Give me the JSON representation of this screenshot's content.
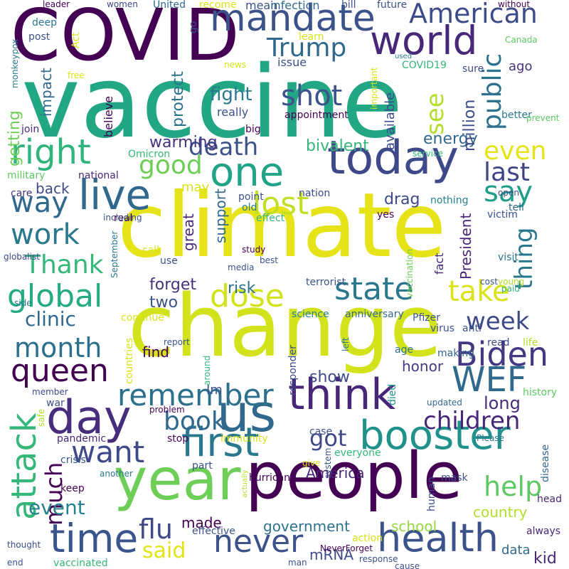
{
  "words": [
    {
      "text": "vaccine",
      "color": "#22a785"
    },
    {
      "text": "climate",
      "color": "#e6e419"
    },
    {
      "text": "change",
      "color": "#d2e21b"
    },
    {
      "text": "COVID",
      "color": "#440154"
    },
    {
      "text": "people",
      "color": "#440154"
    },
    {
      "text": "year",
      "color": "#6ece58"
    },
    {
      "text": "today",
      "color": "#3e4989"
    },
    {
      "text": "mandate",
      "color": "#3b528b"
    },
    {
      "text": "world",
      "color": "#482878"
    },
    {
      "text": "American",
      "color": "#3e4c8a"
    },
    {
      "text": "us",
      "color": "#31688e"
    },
    {
      "text": "think",
      "color": "#482677"
    },
    {
      "text": "day",
      "color": "#472d7b"
    },
    {
      "text": "booster",
      "color": "#21918c"
    },
    {
      "text": "first",
      "color": "#2a788e"
    },
    {
      "text": "health",
      "color": "#3b528b"
    },
    {
      "text": "time",
      "color": "#3a548c"
    },
    {
      "text": "live",
      "color": "#31688e"
    },
    {
      "text": "one",
      "color": "#20a386"
    },
    {
      "text": "right",
      "color": "#2fb47c"
    },
    {
      "text": "Trump",
      "color": "#31688e"
    },
    {
      "text": "shot",
      "color": "#3b528b"
    },
    {
      "text": "public",
      "color": "#2c718e"
    },
    {
      "text": "WEF",
      "color": "#31688e"
    },
    {
      "text": "Biden",
      "color": "#453781"
    },
    {
      "text": "remember",
      "color": "#2d708e"
    },
    {
      "text": "queen",
      "color": "#440154"
    },
    {
      "text": "global",
      "color": "#25ab82"
    },
    {
      "text": "state",
      "color": "#2a788e"
    },
    {
      "text": "dose",
      "color": "#d2e21b"
    },
    {
      "text": "take",
      "color": "#dae319"
    },
    {
      "text": "lost",
      "color": "#c2df23"
    },
    {
      "text": "say",
      "color": "#1f9e89"
    },
    {
      "text": "work",
      "color": "#2a788e"
    },
    {
      "text": "Thank",
      "color": "#35b779"
    },
    {
      "text": "month",
      "color": "#2d708e"
    },
    {
      "text": "want",
      "color": "#3e4989"
    },
    {
      "text": "never",
      "color": "#3b528b"
    },
    {
      "text": "attack",
      "color": "#35b779"
    },
    {
      "text": "help",
      "color": "#5ec962"
    },
    {
      "text": "children",
      "color": "#482878"
    },
    {
      "text": "book",
      "color": "#31688e"
    },
    {
      "text": "way",
      "color": "#31688e"
    },
    {
      "text": "death",
      "color": "#3b528b"
    },
    {
      "text": "good",
      "color": "#6ece58"
    },
    {
      "text": "even",
      "color": "#e5e419"
    },
    {
      "text": "last",
      "color": "#414487"
    },
    {
      "text": "week",
      "color": "#3e4a89"
    },
    {
      "text": "thing",
      "color": "#2a788e"
    },
    {
      "text": "flu",
      "color": "#3e4989"
    },
    {
      "text": "said",
      "color": "#e2e418"
    },
    {
      "text": "got",
      "color": "#3e4989"
    },
    {
      "text": "much",
      "color": "#440154"
    },
    {
      "text": "event",
      "color": "#26828e"
    },
    {
      "text": "clinic",
      "color": "#31688e"
    },
    {
      "text": "see",
      "color": "#b5de2b"
    },
    {
      "text": "fight",
      "color": "#2a788e"
    },
    {
      "text": "show",
      "color": "#3e4a89"
    },
    {
      "text": "long",
      "color": "#472d7b"
    },
    {
      "text": "country",
      "color": "#b5de2b"
    },
    {
      "text": "school",
      "color": "#95d840"
    },
    {
      "text": "government",
      "color": "#2c728e"
    },
    {
      "text": "America",
      "color": "#482677"
    },
    {
      "text": "drag",
      "color": "#3e4989"
    },
    {
      "text": "energy",
      "color": "#31688e"
    },
    {
      "text": "bivalent",
      "color": "#35b779"
    },
    {
      "text": "warming",
      "color": "#46337f"
    },
    {
      "text": "protect",
      "color": "#2c728e"
    },
    {
      "text": "impact",
      "color": "#31688e"
    },
    {
      "text": "getting",
      "color": "#6ece58"
    },
    {
      "text": "million",
      "color": "#3e4989"
    },
    {
      "text": "available",
      "color": "#3e4a89"
    },
    {
      "text": "President",
      "color": "#482677"
    },
    {
      "text": "support",
      "color": "#31688e"
    },
    {
      "text": "great",
      "color": "#482878"
    },
    {
      "text": "risk",
      "color": "#2d708e"
    },
    {
      "text": "forget",
      "color": "#46337f"
    },
    {
      "text": "two",
      "color": "#3b528b"
    },
    {
      "text": "find",
      "color": "#440154"
    },
    {
      "text": "honor",
      "color": "#453781"
    },
    {
      "text": "made",
      "color": "#440154"
    },
    {
      "text": "mRNA",
      "color": "#3e4c8a"
    },
    {
      "text": "data",
      "color": "#31688e"
    },
    {
      "text": "kid",
      "color": "#482878"
    },
    {
      "text": "back",
      "color": "#3e4989"
    },
    {
      "text": "may",
      "color": "#dae319"
    },
    {
      "text": "ago",
      "color": "#46337f"
    },
    {
      "text": "issue",
      "color": "#3b528b"
    },
    {
      "text": "mean",
      "color": "#3b528b"
    },
    {
      "text": "infection",
      "color": "#31688e"
    },
    {
      "text": "really",
      "color": "#3b528b"
    },
    {
      "text": "big",
      "color": "#440154"
    },
    {
      "text": "believe",
      "color": "#440154"
    },
    {
      "text": "join",
      "color": "#482878"
    },
    {
      "text": "care",
      "color": "#46337f"
    },
    {
      "text": "national",
      "color": "#482878"
    },
    {
      "text": "military",
      "color": "#5ec962"
    },
    {
      "text": "Omicron",
      "color": "#35b779"
    },
    {
      "text": "real",
      "color": "#440154"
    },
    {
      "text": "call",
      "color": "#dae319"
    },
    {
      "text": "use",
      "color": "#3b528b"
    },
    {
      "text": "point",
      "color": "#3b528b"
    },
    {
      "text": "nation",
      "color": "#3e4989"
    },
    {
      "text": "old",
      "color": "#2a788e"
    },
    {
      "text": "effect",
      "color": "#35b779"
    },
    {
      "text": "yes",
      "color": "#440154"
    },
    {
      "text": "nothing",
      "color": "#26828e"
    },
    {
      "text": "victim",
      "color": "#3b528b"
    },
    {
      "text": "tell",
      "color": "#31688e"
    },
    {
      "text": "visit",
      "color": "#2a788e"
    },
    {
      "text": "vaccination",
      "color": "#6ece58"
    },
    {
      "text": "fact",
      "color": "#482878"
    },
    {
      "text": "cost",
      "color": "#3b528b"
    },
    {
      "text": "young",
      "color": "#b5de2b"
    },
    {
      "text": "terrorist",
      "color": "#3b528b"
    },
    {
      "text": "anniversary",
      "color": "#31688e"
    },
    {
      "text": "science",
      "color": "#26828e"
    },
    {
      "text": "Pfizer",
      "color": "#3b528b"
    },
    {
      "text": "virus",
      "color": "#3b528b"
    },
    {
      "text": "anti",
      "color": "#3b528b"
    },
    {
      "text": "read",
      "color": "#3e4989"
    },
    {
      "text": "life",
      "color": "#b5de2b"
    },
    {
      "text": "age",
      "color": "#2d708e"
    },
    {
      "text": "making",
      "color": "#31688e"
    },
    {
      "text": "responder",
      "color": "#3e4989"
    },
    {
      "text": "left",
      "color": "#2a788e"
    },
    {
      "text": "died",
      "color": "#21918c"
    },
    {
      "text": "updated",
      "color": "#31688e"
    },
    {
      "text": "history",
      "color": "#5ec962"
    },
    {
      "text": "continue",
      "color": "#dae319"
    },
    {
      "text": "countries",
      "color": "#dae319"
    },
    {
      "text": "around",
      "color": "#35b779"
    },
    {
      "text": "report",
      "color": "#3b528b"
    },
    {
      "text": "problem",
      "color": "#440154"
    },
    {
      "text": "Im",
      "color": "#3b528b"
    },
    {
      "text": "member",
      "color": "#3e4989"
    },
    {
      "text": "war",
      "color": "#3b528b"
    },
    {
      "text": "safe",
      "color": "#b5de2b"
    },
    {
      "text": "pandemic",
      "color": "#482878"
    },
    {
      "text": "stop",
      "color": "#440154"
    },
    {
      "text": "immunity",
      "color": "#dae319"
    },
    {
      "text": "case",
      "color": "#3b528b"
    },
    {
      "text": "everyone",
      "color": "#35b779"
    },
    {
      "text": "Please",
      "color": "#2a788e"
    },
    {
      "text": "crisis",
      "color": "#3b528b"
    },
    {
      "text": "part",
      "color": "#3b528b"
    },
    {
      "text": "another",
      "color": "#2a788e"
    },
    {
      "text": "give",
      "color": "#dae319"
    },
    {
      "text": "system",
      "color": "#3b528b"
    },
    {
      "text": "disease",
      "color": "#31688e"
    },
    {
      "text": "keep",
      "color": "#440154"
    },
    {
      "text": "hurricane",
      "color": "#440154"
    },
    {
      "text": "human",
      "color": "#3e4989"
    },
    {
      "text": "mask",
      "color": "#3b528b"
    },
    {
      "text": "head",
      "color": "#482878"
    },
    {
      "text": "always",
      "color": "#482878"
    },
    {
      "text": "effective",
      "color": "#3b528b"
    },
    {
      "text": "actually",
      "color": "#b5de2b"
    },
    {
      "text": "action",
      "color": "#dae319"
    },
    {
      "text": "NeverForget",
      "color": "#440154"
    },
    {
      "text": "response",
      "color": "#3b528b"
    },
    {
      "text": "cause",
      "color": "#3b528b"
    },
    {
      "text": "thought",
      "color": "#3e4989"
    },
    {
      "text": "end",
      "color": "#3b528b"
    },
    {
      "text": "vaccinated",
      "color": "#35b779"
    },
    {
      "text": "man",
      "color": "#3b528b"
    },
    {
      "text": "leader",
      "color": "#440154"
    },
    {
      "text": "women",
      "color": "#3e4989"
    },
    {
      "text": "United",
      "color": "#31688e"
    },
    {
      "text": "recome",
      "color": "#dae319"
    },
    {
      "text": "bill",
      "color": "#3b528b"
    },
    {
      "text": "future",
      "color": "#3b528b"
    },
    {
      "text": "without",
      "color": "#440154"
    },
    {
      "text": "deep",
      "color": "#2a788e"
    },
    {
      "text": "post",
      "color": "#3b528b"
    },
    {
      "text": "monkeypox",
      "color": "#2a788e"
    },
    {
      "text": "Act",
      "color": "#dae319"
    },
    {
      "text": "go",
      "color": "#3b528b"
    },
    {
      "text": "learn",
      "color": "#dae319"
    },
    {
      "text": "Canada",
      "color": "#5ec962"
    },
    {
      "text": "sure",
      "color": "#3e4989"
    },
    {
      "text": "news",
      "color": "#dae319"
    },
    {
      "text": "used",
      "color": "#2a788e"
    },
    {
      "text": "COVID19",
      "color": "#35b779"
    },
    {
      "text": "important",
      "color": "#dae319"
    },
    {
      "text": "free",
      "color": "#dae319"
    },
    {
      "text": "appointment",
      "color": "#440154"
    },
    {
      "text": "better",
      "color": "#2a788e"
    },
    {
      "text": "prevent",
      "color": "#5ec962"
    },
    {
      "text": "service",
      "color": "#35b779"
    },
    {
      "text": "open",
      "color": "#3e4989"
    },
    {
      "text": "including",
      "color": "#3b528b"
    },
    {
      "text": "globalist",
      "color": "#3e4989"
    },
    {
      "text": "side",
      "color": "#2a788e"
    },
    {
      "text": "study",
      "color": "#440154"
    },
    {
      "text": "best",
      "color": "#3b528b"
    },
    {
      "text": "media",
      "color": "#3b528b"
    },
    {
      "text": "September",
      "color": "#2a788e"
    },
    {
      "text": "paid",
      "color": "#35b779"
    }
  ]
}
